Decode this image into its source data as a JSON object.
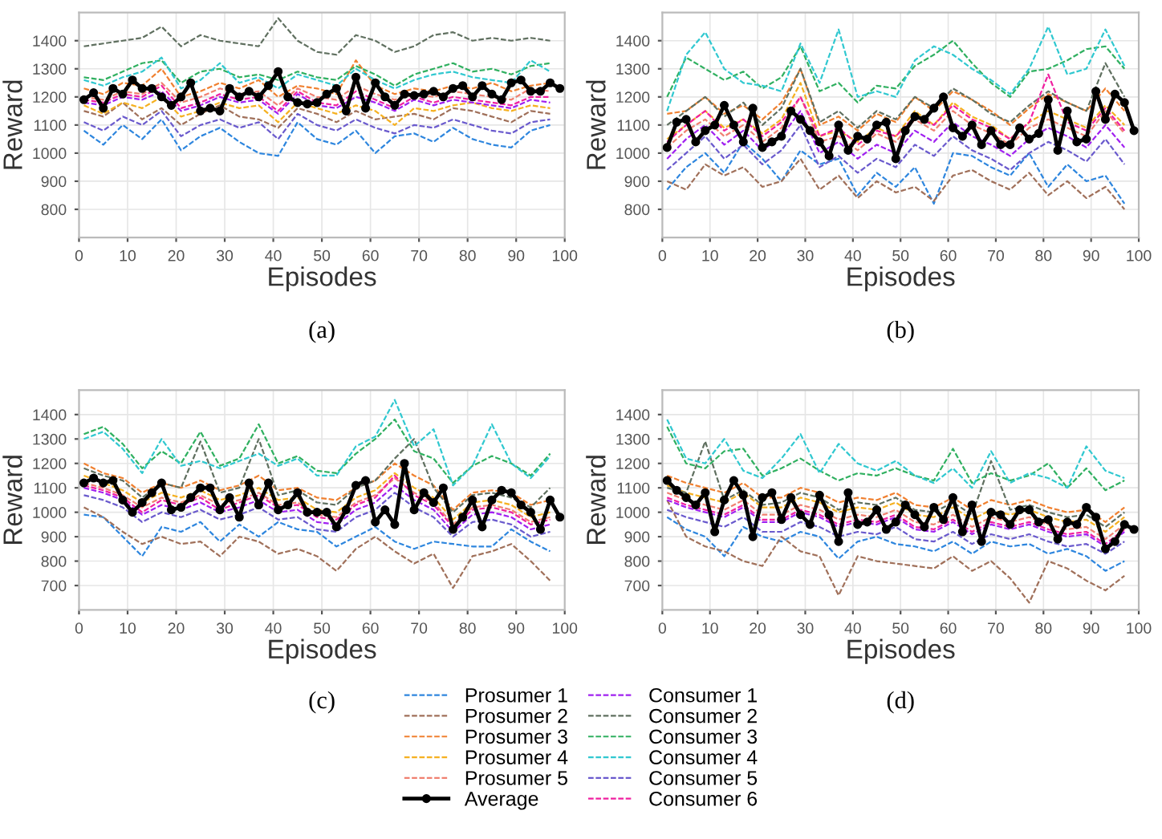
{
  "chart_data": [
    {
      "type": "line",
      "title": "(a)",
      "xlabel": "Episodes",
      "ylabel": "Reward",
      "xlim": [
        0,
        100
      ],
      "xticks": [
        0,
        10,
        20,
        30,
        40,
        50,
        60,
        70,
        80,
        90,
        100
      ],
      "ylim": [
        700,
        1500
      ],
      "yticks": [
        800,
        900,
        1000,
        1100,
        1200,
        1300,
        1400
      ],
      "grid": true,
      "line_style": "dashed",
      "legend": "bottom",
      "x": [
        1,
        5,
        9,
        13,
        17,
        21,
        25,
        29,
        33,
        37,
        41,
        45,
        49,
        53,
        57,
        61,
        65,
        69,
        73,
        77,
        81,
        85,
        89,
        93,
        97
      ],
      "series": [
        {
          "name": "Prosumer 1",
          "color": "#2e86de",
          "values": [
            1080,
            1030,
            1100,
            1050,
            1120,
            1010,
            1060,
            1090,
            1040,
            1000,
            990,
            1110,
            1050,
            1030,
            1080,
            1000,
            1060,
            1070,
            1040,
            1090,
            1050,
            1030,
            1020,
            1080,
            1100
          ]
        },
        {
          "name": "Prosumer 2",
          "color": "#a0705a",
          "values": [
            1150,
            1130,
            1180,
            1120,
            1160,
            1100,
            1140,
            1170,
            1130,
            1120,
            1090,
            1160,
            1140,
            1110,
            1150,
            1120,
            1130,
            1140,
            1120,
            1160,
            1150,
            1130,
            1110,
            1150,
            1140
          ]
        },
        {
          "name": "Prosumer 3",
          "color": "#f08030",
          "values": [
            1230,
            1210,
            1250,
            1240,
            1300,
            1200,
            1220,
            1250,
            1230,
            1260,
            1200,
            1240,
            1230,
            1210,
            1330,
            1240,
            1210,
            1230,
            1220,
            1240,
            1230,
            1250,
            1220,
            1240,
            1250
          ]
        },
        {
          "name": "Prosumer 4",
          "color": "#f5b020",
          "values": [
            1170,
            1140,
            1180,
            1160,
            1200,
            1130,
            1150,
            1180,
            1160,
            1170,
            1110,
            1180,
            1160,
            1140,
            1170,
            1150,
            1100,
            1160,
            1150,
            1170,
            1180,
            1160,
            1150,
            1170,
            1160
          ]
        },
        {
          "name": "Prosumer 5",
          "color": "#f08070",
          "values": [
            1200,
            1190,
            1220,
            1210,
            1250,
            1180,
            1200,
            1230,
            1210,
            1220,
            1170,
            1230,
            1200,
            1190,
            1240,
            1210,
            1190,
            1210,
            1200,
            1220,
            1210,
            1200,
            1190,
            1230,
            1220
          ]
        },
        {
          "name": "Average",
          "color": "#000000",
          "line_style": "solid",
          "marker": "circle",
          "x": [
            1,
            3,
            5,
            7,
            9,
            11,
            13,
            15,
            17,
            19,
            21,
            23,
            25,
            27,
            29,
            31,
            33,
            35,
            37,
            39,
            41,
            43,
            45,
            47,
            49,
            51,
            53,
            55,
            57,
            59,
            61,
            63,
            65,
            67,
            69,
            71,
            73,
            75,
            77,
            79,
            81,
            83,
            85,
            87,
            89,
            91,
            93,
            95,
            97,
            99
          ],
          "values": [
            1190,
            1215,
            1160,
            1230,
            1210,
            1260,
            1230,
            1230,
            1200,
            1170,
            1200,
            1250,
            1150,
            1160,
            1150,
            1230,
            1200,
            1220,
            1200,
            1240,
            1290,
            1200,
            1180,
            1175,
            1180,
            1210,
            1230,
            1150,
            1270,
            1160,
            1250,
            1200,
            1170,
            1210,
            1205,
            1210,
            1220,
            1200,
            1230,
            1240,
            1200,
            1240,
            1210,
            1190,
            1250,
            1260,
            1220,
            1220,
            1250,
            1230
          ]
        },
        {
          "name": "Consumer 1",
          "color": "#a020f0",
          "values": [
            1180,
            1170,
            1200,
            1190,
            1220,
            1150,
            1170,
            1200,
            1180,
            1190,
            1140,
            1210,
            1170,
            1160,
            1200,
            1180,
            1150,
            1190,
            1170,
            1190,
            1180,
            1170,
            1160,
            1190,
            1180
          ]
        },
        {
          "name": "Consumer 2",
          "color": "#607060",
          "values": [
            1380,
            1390,
            1400,
            1410,
            1450,
            1380,
            1420,
            1400,
            1390,
            1380,
            1480,
            1400,
            1360,
            1350,
            1420,
            1400,
            1360,
            1380,
            1420,
            1430,
            1400,
            1410,
            1400,
            1410,
            1400
          ]
        },
        {
          "name": "Consumer 3",
          "color": "#30b060",
          "values": [
            1270,
            1260,
            1290,
            1320,
            1330,
            1250,
            1290,
            1300,
            1270,
            1280,
            1260,
            1290,
            1270,
            1260,
            1310,
            1280,
            1240,
            1280,
            1300,
            1320,
            1290,
            1300,
            1280,
            1310,
            1320
          ]
        },
        {
          "name": "Consumer 4",
          "color": "#30c8d0",
          "values": [
            1260,
            1240,
            1270,
            1290,
            1340,
            1230,
            1260,
            1320,
            1250,
            1270,
            1230,
            1280,
            1260,
            1240,
            1300,
            1260,
            1230,
            1260,
            1280,
            1290,
            1270,
            1260,
            1250,
            1330,
            1290
          ]
        },
        {
          "name": "Consumer 5",
          "color": "#6a5acd",
          "values": [
            1110,
            1080,
            1130,
            1100,
            1150,
            1060,
            1100,
            1120,
            1090,
            1110,
            1050,
            1140,
            1100,
            1080,
            1120,
            1090,
            1070,
            1100,
            1090,
            1120,
            1100,
            1080,
            1070,
            1110,
            1120
          ]
        },
        {
          "name": "Consumer 6",
          "color": "#f020a0",
          "values": [
            1190,
            1180,
            1210,
            1200,
            1240,
            1160,
            1180,
            1210,
            1190,
            1200,
            1150,
            1220,
            1180,
            1170,
            1220,
            1190,
            1160,
            1200,
            1180,
            1200,
            1190,
            1180,
            1170,
            1200,
            1200
          ]
        }
      ]
    },
    {
      "type": "line",
      "title": "(b)",
      "xlabel": "Episodes",
      "ylabel": "Reward",
      "xlim": [
        0,
        100
      ],
      "xticks": [
        0,
        10,
        20,
        30,
        40,
        50,
        60,
        70,
        80,
        90,
        100
      ],
      "ylim": [
        700,
        1500
      ],
      "yticks": [
        800,
        900,
        1000,
        1100,
        1200,
        1300,
        1400
      ],
      "grid": true,
      "line_style": "dashed",
      "x": [
        1,
        5,
        9,
        13,
        17,
        21,
        25,
        29,
        33,
        37,
        41,
        45,
        49,
        53,
        57,
        61,
        65,
        69,
        73,
        77,
        81,
        85,
        89,
        93,
        97
      ],
      "series": [
        {
          "color": "#2e86de",
          "values": [
            870,
            950,
            1000,
            930,
            1040,
            980,
            900,
            1010,
            960,
            980,
            850,
            930,
            880,
            950,
            820,
            1000,
            990,
            950,
            920,
            1000,
            880,
            960,
            900,
            920,
            820
          ]
        },
        {
          "color": "#a0705a",
          "values": [
            900,
            870,
            960,
            920,
            950,
            880,
            900,
            980,
            870,
            920,
            840,
            900,
            860,
            880,
            830,
            920,
            940,
            900,
            870,
            930,
            850,
            900,
            840,
            880,
            800
          ]
        },
        {
          "color": "#f08030",
          "values": [
            1140,
            1150,
            1200,
            1140,
            1170,
            1120,
            1180,
            1300,
            1100,
            1130,
            1080,
            1140,
            1110,
            1200,
            1150,
            1220,
            1190,
            1150,
            1100,
            1160,
            1210,
            1180,
            1150,
            1230,
            1150
          ]
        },
        {
          "color": "#f5b020",
          "values": [
            1050,
            1100,
            1150,
            1090,
            1120,
            1070,
            1120,
            1250,
            1060,
            1080,
            1040,
            1090,
            1060,
            1150,
            1100,
            1180,
            1130,
            1100,
            1050,
            1110,
            1150,
            1120,
            1090,
            1170,
            1100
          ]
        },
        {
          "color": "#f08070",
          "values": [
            1020,
            1080,
            1120,
            1060,
            1100,
            1040,
            1090,
            1200,
            1040,
            1060,
            1010,
            1070,
            1040,
            1120,
            1080,
            1150,
            1100,
            1070,
            1030,
            1090,
            1120,
            1090,
            1060,
            1150,
            1070
          ]
        },
        {
          "color": "#000000",
          "line_style": "solid",
          "marker": "circle",
          "x": [
            1,
            3,
            5,
            7,
            9,
            11,
            13,
            15,
            17,
            19,
            21,
            23,
            25,
            27,
            29,
            31,
            33,
            35,
            37,
            39,
            41,
            43,
            45,
            47,
            49,
            51,
            53,
            55,
            57,
            59,
            61,
            63,
            65,
            67,
            69,
            71,
            73,
            75,
            77,
            79,
            81,
            83,
            85,
            87,
            89,
            91,
            93,
            95,
            97,
            99
          ],
          "values": [
            1020,
            1110,
            1120,
            1040,
            1080,
            1100,
            1170,
            1100,
            1040,
            1160,
            1020,
            1040,
            1060,
            1150,
            1120,
            1080,
            1040,
            990,
            1100,
            1010,
            1060,
            1050,
            1100,
            1110,
            980,
            1080,
            1130,
            1120,
            1160,
            1200,
            1090,
            1060,
            1100,
            1030,
            1080,
            1030,
            1030,
            1090,
            1050,
            1070,
            1190,
            1010,
            1150,
            1040,
            1050,
            1220,
            1120,
            1210,
            1180,
            1080
          ]
        },
        {
          "color": "#a020f0",
          "values": [
            980,
            1050,
            1100,
            1030,
            1080,
            1010,
            1060,
            1150,
            1000,
            1040,
            980,
            1030,
            1000,
            1080,
            1040,
            1110,
            1060,
            1030,
            990,
            1050,
            1090,
            1060,
            1020,
            1100,
            1020
          ]
        },
        {
          "color": "#607060",
          "values": [
            1100,
            1150,
            1200,
            1130,
            1180,
            1100,
            1160,
            1300,
            1110,
            1150,
            1090,
            1150,
            1120,
            1200,
            1160,
            1230,
            1190,
            1140,
            1110,
            1170,
            1220,
            1180,
            1150,
            1320,
            1200
          ]
        },
        {
          "color": "#30b060",
          "values": [
            1200,
            1340,
            1300,
            1260,
            1290,
            1230,
            1270,
            1380,
            1220,
            1250,
            1180,
            1240,
            1230,
            1310,
            1350,
            1400,
            1320,
            1250,
            1200,
            1290,
            1300,
            1330,
            1370,
            1380,
            1300
          ]
        },
        {
          "color": "#30c8d0",
          "values": [
            1150,
            1350,
            1430,
            1300,
            1250,
            1240,
            1220,
            1390,
            1250,
            1440,
            1200,
            1220,
            1200,
            1330,
            1380,
            1350,
            1300,
            1260,
            1210,
            1300,
            1450,
            1280,
            1300,
            1440,
            1310
          ]
        },
        {
          "color": "#6a5acd",
          "values": [
            940,
            1000,
            1060,
            980,
            1030,
            960,
            1010,
            1100,
            950,
            990,
            930,
            980,
            950,
            1030,
            990,
            1060,
            1010,
            980,
            940,
            1000,
            1040,
            1010,
            970,
            1050,
            960
          ]
        },
        {
          "color": "#f020a0",
          "values": [
            1040,
            1100,
            1150,
            1080,
            1120,
            1060,
            1110,
            1200,
            1060,
            1090,
            1030,
            1080,
            1060,
            1130,
            1100,
            1170,
            1120,
            1090,
            1050,
            1110,
            1280,
            1110,
            1080,
            1160,
            1080
          ]
        }
      ]
    },
    {
      "type": "line",
      "title": "(c)",
      "xlabel": "Episodes",
      "ylabel": "Reward",
      "xlim": [
        0,
        100
      ],
      "xticks": [
        0,
        10,
        20,
        30,
        40,
        50,
        60,
        70,
        80,
        90,
        100
      ],
      "ylim": [
        600,
        1500
      ],
      "yticks": [
        700,
        800,
        900,
        1000,
        1100,
        1200,
        1300,
        1400
      ],
      "grid": true,
      "line_style": "dashed",
      "x": [
        1,
        5,
        9,
        13,
        17,
        21,
        25,
        29,
        33,
        37,
        41,
        45,
        49,
        53,
        57,
        61,
        65,
        69,
        73,
        77,
        81,
        85,
        89,
        93,
        97
      ],
      "series": [
        {
          "color": "#2e86de",
          "values": [
            990,
            980,
            900,
            820,
            940,
            920,
            960,
            880,
            950,
            900,
            960,
            930,
            920,
            860,
            900,
            940,
            880,
            850,
            880,
            870,
            860,
            860,
            930,
            880,
            840
          ]
        },
        {
          "color": "#a0705a",
          "values": [
            1020,
            980,
            920,
            870,
            900,
            870,
            880,
            820,
            900,
            880,
            830,
            850,
            820,
            760,
            850,
            900,
            840,
            790,
            830,
            690,
            820,
            840,
            870,
            800,
            720
          ]
        },
        {
          "color": "#f08030",
          "values": [
            1200,
            1160,
            1140,
            1080,
            1120,
            1100,
            1130,
            1090,
            1110,
            1150,
            1090,
            1100,
            1060,
            1050,
            1100,
            1130,
            1200,
            1150,
            1110,
            1010,
            1080,
            1090,
            1080,
            1030,
            1050
          ]
        },
        {
          "color": "#f5b020",
          "values": [
            1150,
            1120,
            1090,
            1040,
            1080,
            1060,
            1090,
            1050,
            1070,
            1100,
            1050,
            1060,
            1010,
            1000,
            1060,
            1090,
            1160,
            1100,
            1060,
            970,
            1040,
            1050,
            1030,
            980,
            1000
          ]
        },
        {
          "color": "#f08070",
          "values": [
            1120,
            1100,
            1070,
            1020,
            1060,
            1040,
            1070,
            1030,
            1050,
            1080,
            1030,
            1040,
            990,
            980,
            1040,
            1070,
            1140,
            1080,
            1040,
            950,
            1020,
            1030,
            1010,
            960,
            980
          ]
        },
        {
          "color": "#000000",
          "line_style": "solid",
          "marker": "circle",
          "x": [
            1,
            3,
            5,
            7,
            9,
            11,
            13,
            15,
            17,
            19,
            21,
            23,
            25,
            27,
            29,
            31,
            33,
            35,
            37,
            39,
            41,
            43,
            45,
            47,
            49,
            51,
            53,
            55,
            57,
            59,
            61,
            63,
            65,
            67,
            69,
            71,
            73,
            75,
            77,
            79,
            81,
            83,
            85,
            87,
            89,
            91,
            93,
            95,
            97,
            99
          ],
          "values": [
            1120,
            1140,
            1120,
            1130,
            1050,
            1000,
            1040,
            1080,
            1120,
            1010,
            1020,
            1060,
            1100,
            1100,
            1010,
            1060,
            980,
            1120,
            1030,
            1120,
            1010,
            1030,
            1080,
            1000,
            1000,
            1000,
            940,
            1010,
            1110,
            1130,
            960,
            1010,
            950,
            1200,
            1010,
            1080,
            1040,
            1100,
            930,
            980,
            1050,
            940,
            1050,
            1090,
            1080,
            1030,
            1000,
            930,
            1050,
            980
          ]
        },
        {
          "color": "#a020f0",
          "values": [
            1100,
            1080,
            1050,
            990,
            1030,
            1010,
            1040,
            1000,
            1020,
            1050,
            1000,
            1010,
            960,
            950,
            1010,
            1040,
            1110,
            1050,
            1010,
            920,
            990,
            1000,
            980,
            930,
            950
          ]
        },
        {
          "color": "#607060",
          "values": [
            1180,
            1150,
            1130,
            1060,
            1120,
            1100,
            1290,
            1080,
            1100,
            1300,
            1070,
            1090,
            1040,
            1030,
            1100,
            1130,
            1220,
            1300,
            1100,
            1000,
            1070,
            1080,
            1060,
            1020,
            1100
          ]
        },
        {
          "color": "#30b060",
          "values": [
            1320,
            1350,
            1280,
            1180,
            1250,
            1200,
            1330,
            1190,
            1220,
            1360,
            1200,
            1230,
            1170,
            1160,
            1240,
            1300,
            1380,
            1250,
            1220,
            1120,
            1190,
            1230,
            1200,
            1150,
            1240
          ]
        },
        {
          "color": "#30c8d0",
          "values": [
            1300,
            1330,
            1260,
            1160,
            1300,
            1190,
            1210,
            1180,
            1210,
            1240,
            1190,
            1220,
            1150,
            1150,
            1270,
            1310,
            1460,
            1270,
            1340,
            1110,
            1190,
            1360,
            1200,
            1140,
            1230
          ]
        },
        {
          "color": "#6a5acd",
          "values": [
            1070,
            1050,
            1020,
            960,
            1000,
            980,
            1010,
            970,
            990,
            1020,
            970,
            980,
            930,
            920,
            980,
            1010,
            1080,
            1020,
            980,
            900,
            960,
            970,
            950,
            900,
            920
          ]
        },
        {
          "color": "#f020a0",
          "values": [
            1110,
            1090,
            1060,
            1000,
            1050,
            1030,
            1060,
            1010,
            1040,
            1070,
            1020,
            1030,
            980,
            970,
            1030,
            1060,
            1150,
            1070,
            1030,
            940,
            1010,
            1020,
            1000,
            950,
            970
          ]
        }
      ]
    },
    {
      "type": "line",
      "title": "(d)",
      "xlabel": "Episodes",
      "ylabel": "Reward",
      "xlim": [
        0,
        100
      ],
      "xticks": [
        0,
        10,
        20,
        30,
        40,
        50,
        60,
        70,
        80,
        90,
        100
      ],
      "ylim": [
        600,
        1500
      ],
      "yticks": [
        700,
        800,
        900,
        1000,
        1100,
        1200,
        1300,
        1400
      ],
      "grid": true,
      "line_style": "dashed",
      "x": [
        1,
        5,
        9,
        13,
        17,
        21,
        25,
        29,
        33,
        37,
        41,
        45,
        49,
        53,
        57,
        61,
        65,
        69,
        73,
        77,
        81,
        85,
        89,
        93,
        97
      ],
      "series": [
        {
          "color": "#2e86de",
          "values": [
            980,
            930,
            900,
            820,
            940,
            900,
            880,
            920,
            900,
            810,
            880,
            900,
            870,
            860,
            840,
            880,
            830,
            880,
            860,
            870,
            830,
            850,
            820,
            760,
            800
          ]
        },
        {
          "color": "#a0705a",
          "values": [
            1050,
            900,
            860,
            840,
            800,
            780,
            900,
            840,
            820,
            660,
            820,
            800,
            790,
            780,
            770,
            820,
            760,
            800,
            730,
            630,
            800,
            770,
            720,
            680,
            740
          ]
        },
        {
          "color": "#f08030",
          "values": [
            1150,
            1120,
            1100,
            1080,
            1120,
            1060,
            1060,
            1100,
            1080,
            1040,
            1060,
            1050,
            1080,
            1030,
            1020,
            1060,
            1010,
            1050,
            1030,
            1050,
            1020,
            1000,
            1010,
            960,
            1020
          ]
        },
        {
          "color": "#f5b020",
          "values": [
            1110,
            1080,
            1060,
            1040,
            1080,
            1020,
            1020,
            1060,
            1040,
            1000,
            1020,
            1010,
            1040,
            990,
            980,
            1020,
            970,
            1010,
            990,
            1010,
            980,
            960,
            970,
            920,
            980
          ]
        },
        {
          "color": "#f08070",
          "values": [
            1080,
            1050,
            1030,
            1010,
            1050,
            990,
            990,
            1030,
            1010,
            970,
            990,
            980,
            1010,
            960,
            950,
            990,
            940,
            980,
            960,
            980,
            950,
            930,
            940,
            890,
            950
          ]
        },
        {
          "color": "#000000",
          "line_style": "solid",
          "marker": "circle",
          "x": [
            1,
            3,
            5,
            7,
            9,
            11,
            13,
            15,
            17,
            19,
            21,
            23,
            25,
            27,
            29,
            31,
            33,
            35,
            37,
            39,
            41,
            43,
            45,
            47,
            49,
            51,
            53,
            55,
            57,
            59,
            61,
            63,
            65,
            67,
            69,
            71,
            73,
            75,
            77,
            79,
            81,
            83,
            85,
            87,
            89,
            91,
            93,
            95,
            97,
            99
          ],
          "values": [
            1130,
            1090,
            1060,
            1030,
            1080,
            920,
            1050,
            1130,
            1070,
            900,
            1060,
            1080,
            970,
            1060,
            990,
            950,
            1070,
            990,
            880,
            1080,
            950,
            960,
            1010,
            930,
            960,
            1030,
            990,
            940,
            1020,
            970,
            1060,
            920,
            1030,
            880,
            1000,
            990,
            950,
            1010,
            1010,
            960,
            970,
            890,
            960,
            950,
            1020,
            980,
            850,
            880,
            950,
            930
          ]
        },
        {
          "color": "#a020f0",
          "values": [
            1050,
            1020,
            1000,
            980,
            1020,
            960,
            960,
            1000,
            980,
            940,
            960,
            950,
            980,
            930,
            920,
            960,
            910,
            950,
            930,
            950,
            920,
            900,
            910,
            860,
            920
          ]
        },
        {
          "color": "#607060",
          "values": [
            1100,
            1080,
            1290,
            1050,
            1090,
            1030,
            1040,
            1080,
            1060,
            1010,
            1040,
            1030,
            1060,
            1010,
            1000,
            1040,
            990,
            1210,
            1010,
            1030,
            1000,
            980,
            990,
            940,
            1000
          ]
        },
        {
          "color": "#30b060",
          "values": [
            1350,
            1200,
            1180,
            1250,
            1260,
            1150,
            1180,
            1220,
            1170,
            1130,
            1160,
            1150,
            1180,
            1150,
            1130,
            1260,
            1120,
            1160,
            1130,
            1150,
            1200,
            1100,
            1180,
            1090,
            1130
          ]
        },
        {
          "color": "#30c8d0",
          "values": [
            1380,
            1220,
            1200,
            1300,
            1170,
            1140,
            1220,
            1320,
            1160,
            1280,
            1200,
            1170,
            1210,
            1150,
            1120,
            1180,
            1100,
            1250,
            1120,
            1160,
            1140,
            1100,
            1270,
            1170,
            1140
          ]
        },
        {
          "color": "#6a5acd",
          "values": [
            1010,
            980,
            960,
            940,
            980,
            920,
            920,
            960,
            940,
            900,
            920,
            910,
            940,
            890,
            880,
            920,
            870,
            910,
            890,
            910,
            880,
            860,
            870,
            830,
            880
          ]
        },
        {
          "color": "#f020a0",
          "values": [
            1060,
            1030,
            1010,
            990,
            1030,
            970,
            970,
            1010,
            990,
            950,
            970,
            960,
            990,
            940,
            930,
            970,
            920,
            960,
            940,
            960,
            930,
            910,
            920,
            870,
            930
          ]
        }
      ]
    }
  ]
}
